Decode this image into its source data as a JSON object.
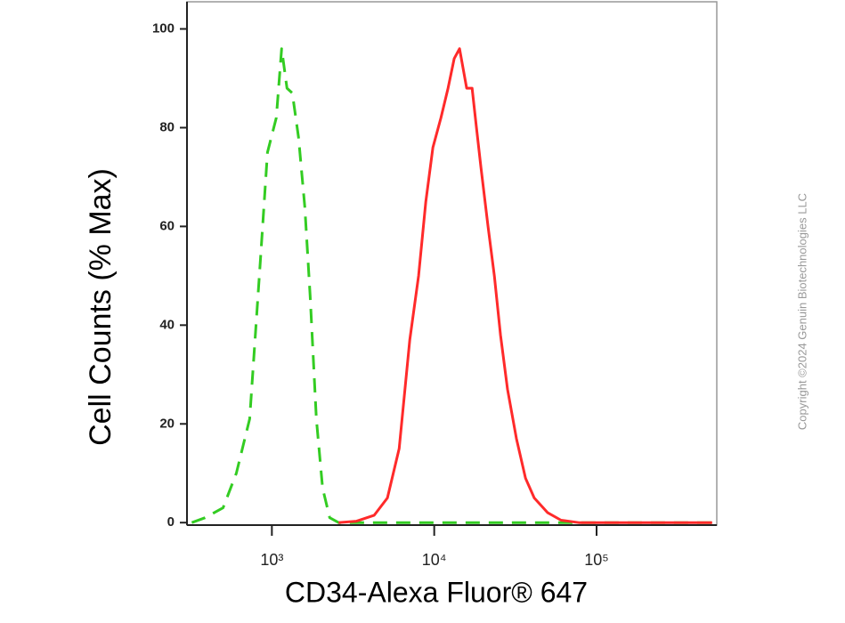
{
  "chart_data": {
    "type": "line",
    "x_label": "CD34-Alexa Fluor® 647",
    "y_label": "Cell Counts (% Max)",
    "xscale": "log",
    "xlim": [
      300,
      550000
    ],
    "ylim": [
      -0.5,
      105.5
    ],
    "xticks": [
      {
        "value": 1000,
        "label": "10³"
      },
      {
        "value": 10000,
        "label": "10⁴"
      },
      {
        "value": 100000,
        "label": "10⁵"
      }
    ],
    "yticks": [
      0,
      20,
      40,
      60,
      80,
      100
    ],
    "series": [
      {
        "color": "#33cc22",
        "dashed": true,
        "x": [
          321,
          388,
          500,
          604,
          730,
          849,
          939,
          1065,
          1149,
          1239,
          1337,
          1460,
          1595,
          1721,
          1880,
          2053,
          2271,
          2576,
          11700,
          515000
        ],
        "values": [
          0,
          1,
          3,
          10,
          21,
          53,
          75,
          82,
          96,
          88,
          87,
          78,
          64,
          46,
          21,
          7,
          1,
          0,
          0,
          0
        ]
      },
      {
        "color": "#ff2a2a",
        "dashed": false,
        "x": [
          2576,
          3320,
          4270,
          5150,
          6080,
          7070,
          8010,
          8870,
          9820,
          11000,
          12160,
          13280,
          14320,
          15070,
          15850,
          17100,
          18210,
          19400,
          21460,
          23460,
          25600,
          28300,
          32100,
          36500,
          41300,
          50000,
          60400,
          77700,
          515000
        ],
        "values": [
          0,
          0.3,
          1.5,
          5,
          15,
          37,
          50,
          65,
          76,
          82,
          88,
          94,
          96,
          92,
          88,
          88,
          80,
          72,
          60,
          50,
          38,
          27,
          17,
          9,
          5,
          2,
          0.5,
          0,
          0
        ]
      }
    ]
  },
  "watermark": "Copyright ©2024 Genuin Biotechnologies LLC"
}
